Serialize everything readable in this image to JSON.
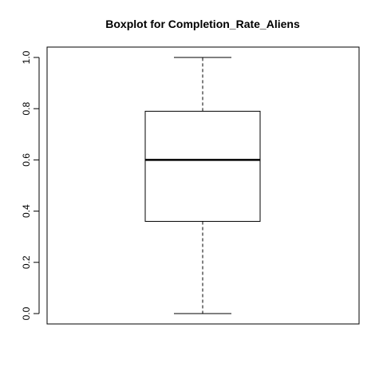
{
  "chart_data": {
    "type": "boxplot",
    "title": "Boxplot for  Completion_Rate_Aliens",
    "xlabel": "",
    "ylabel": "",
    "ylim": [
      0,
      1
    ],
    "yticks": [
      0.0,
      0.2,
      0.4,
      0.6,
      0.8,
      1.0
    ],
    "ytick_labels": [
      "0.0",
      "0.2",
      "0.4",
      "0.6",
      "0.8",
      "1.0"
    ],
    "series": [
      {
        "min": 0.0,
        "q1": 0.36,
        "median": 0.6,
        "q3": 0.79,
        "max": 1.0
      }
    ],
    "grid": false,
    "colors": {
      "stroke": "#000000",
      "background": "#ffffff"
    }
  }
}
